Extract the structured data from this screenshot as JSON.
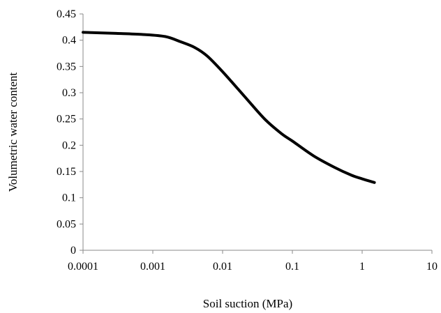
{
  "chart_data": {
    "type": "line",
    "title": "",
    "xlabel": "Soil  suction (MPa)",
    "ylabel": "Volumetric water content",
    "x_scale": "log",
    "xlim": [
      0.0001,
      10
    ],
    "ylim": [
      0,
      0.45
    ],
    "x_ticks": [
      0.0001,
      0.001,
      0.01,
      0.1,
      1,
      10
    ],
    "x_tick_labels": [
      "0.0001",
      "0.001",
      "0.01",
      "0.1",
      "1",
      "10"
    ],
    "y_ticks": [
      0,
      0.05,
      0.1,
      0.15,
      0.2,
      0.25,
      0.3,
      0.35,
      0.4,
      0.45
    ],
    "y_tick_labels": [
      "0",
      "0.05",
      "0.1",
      "0.15",
      "0.2",
      "0.25",
      "0.3",
      "0.35",
      "0.4",
      "0.45"
    ],
    "grid": false,
    "legend": "none",
    "series": [
      {
        "color": "#000000",
        "x": [
          0.0001,
          0.0003,
          0.0007,
          0.0015,
          0.0025,
          0.004,
          0.006,
          0.01,
          0.02,
          0.04,
          0.07,
          0.1,
          0.2,
          0.4,
          0.7,
          1.0,
          1.5
        ],
        "y": [
          0.415,
          0.413,
          0.411,
          0.407,
          0.397,
          0.386,
          0.37,
          0.34,
          0.295,
          0.25,
          0.222,
          0.208,
          0.18,
          0.158,
          0.143,
          0.136,
          0.129
        ]
      }
    ]
  }
}
